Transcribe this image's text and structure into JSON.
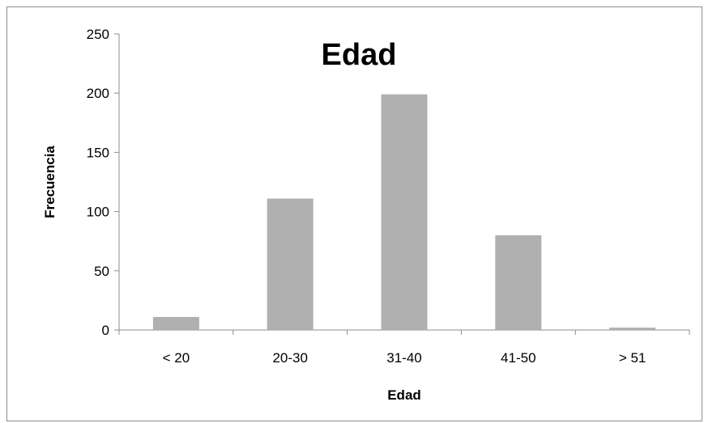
{
  "chart_data": {
    "type": "bar",
    "title": "Edad",
    "xlabel": "Edad",
    "ylabel": "Frecuencia",
    "categories": [
      "< 20",
      "20-30",
      "31-40",
      "41-50",
      "> 51"
    ],
    "values": [
      11,
      111,
      199,
      80,
      2
    ],
    "ylim": [
      0,
      250
    ],
    "yticks": [
      0,
      50,
      100,
      150,
      200,
      250
    ],
    "grid": false,
    "legend": "none",
    "bar_color": "#b0b0b0",
    "axis_color": "#8c8c8c"
  }
}
